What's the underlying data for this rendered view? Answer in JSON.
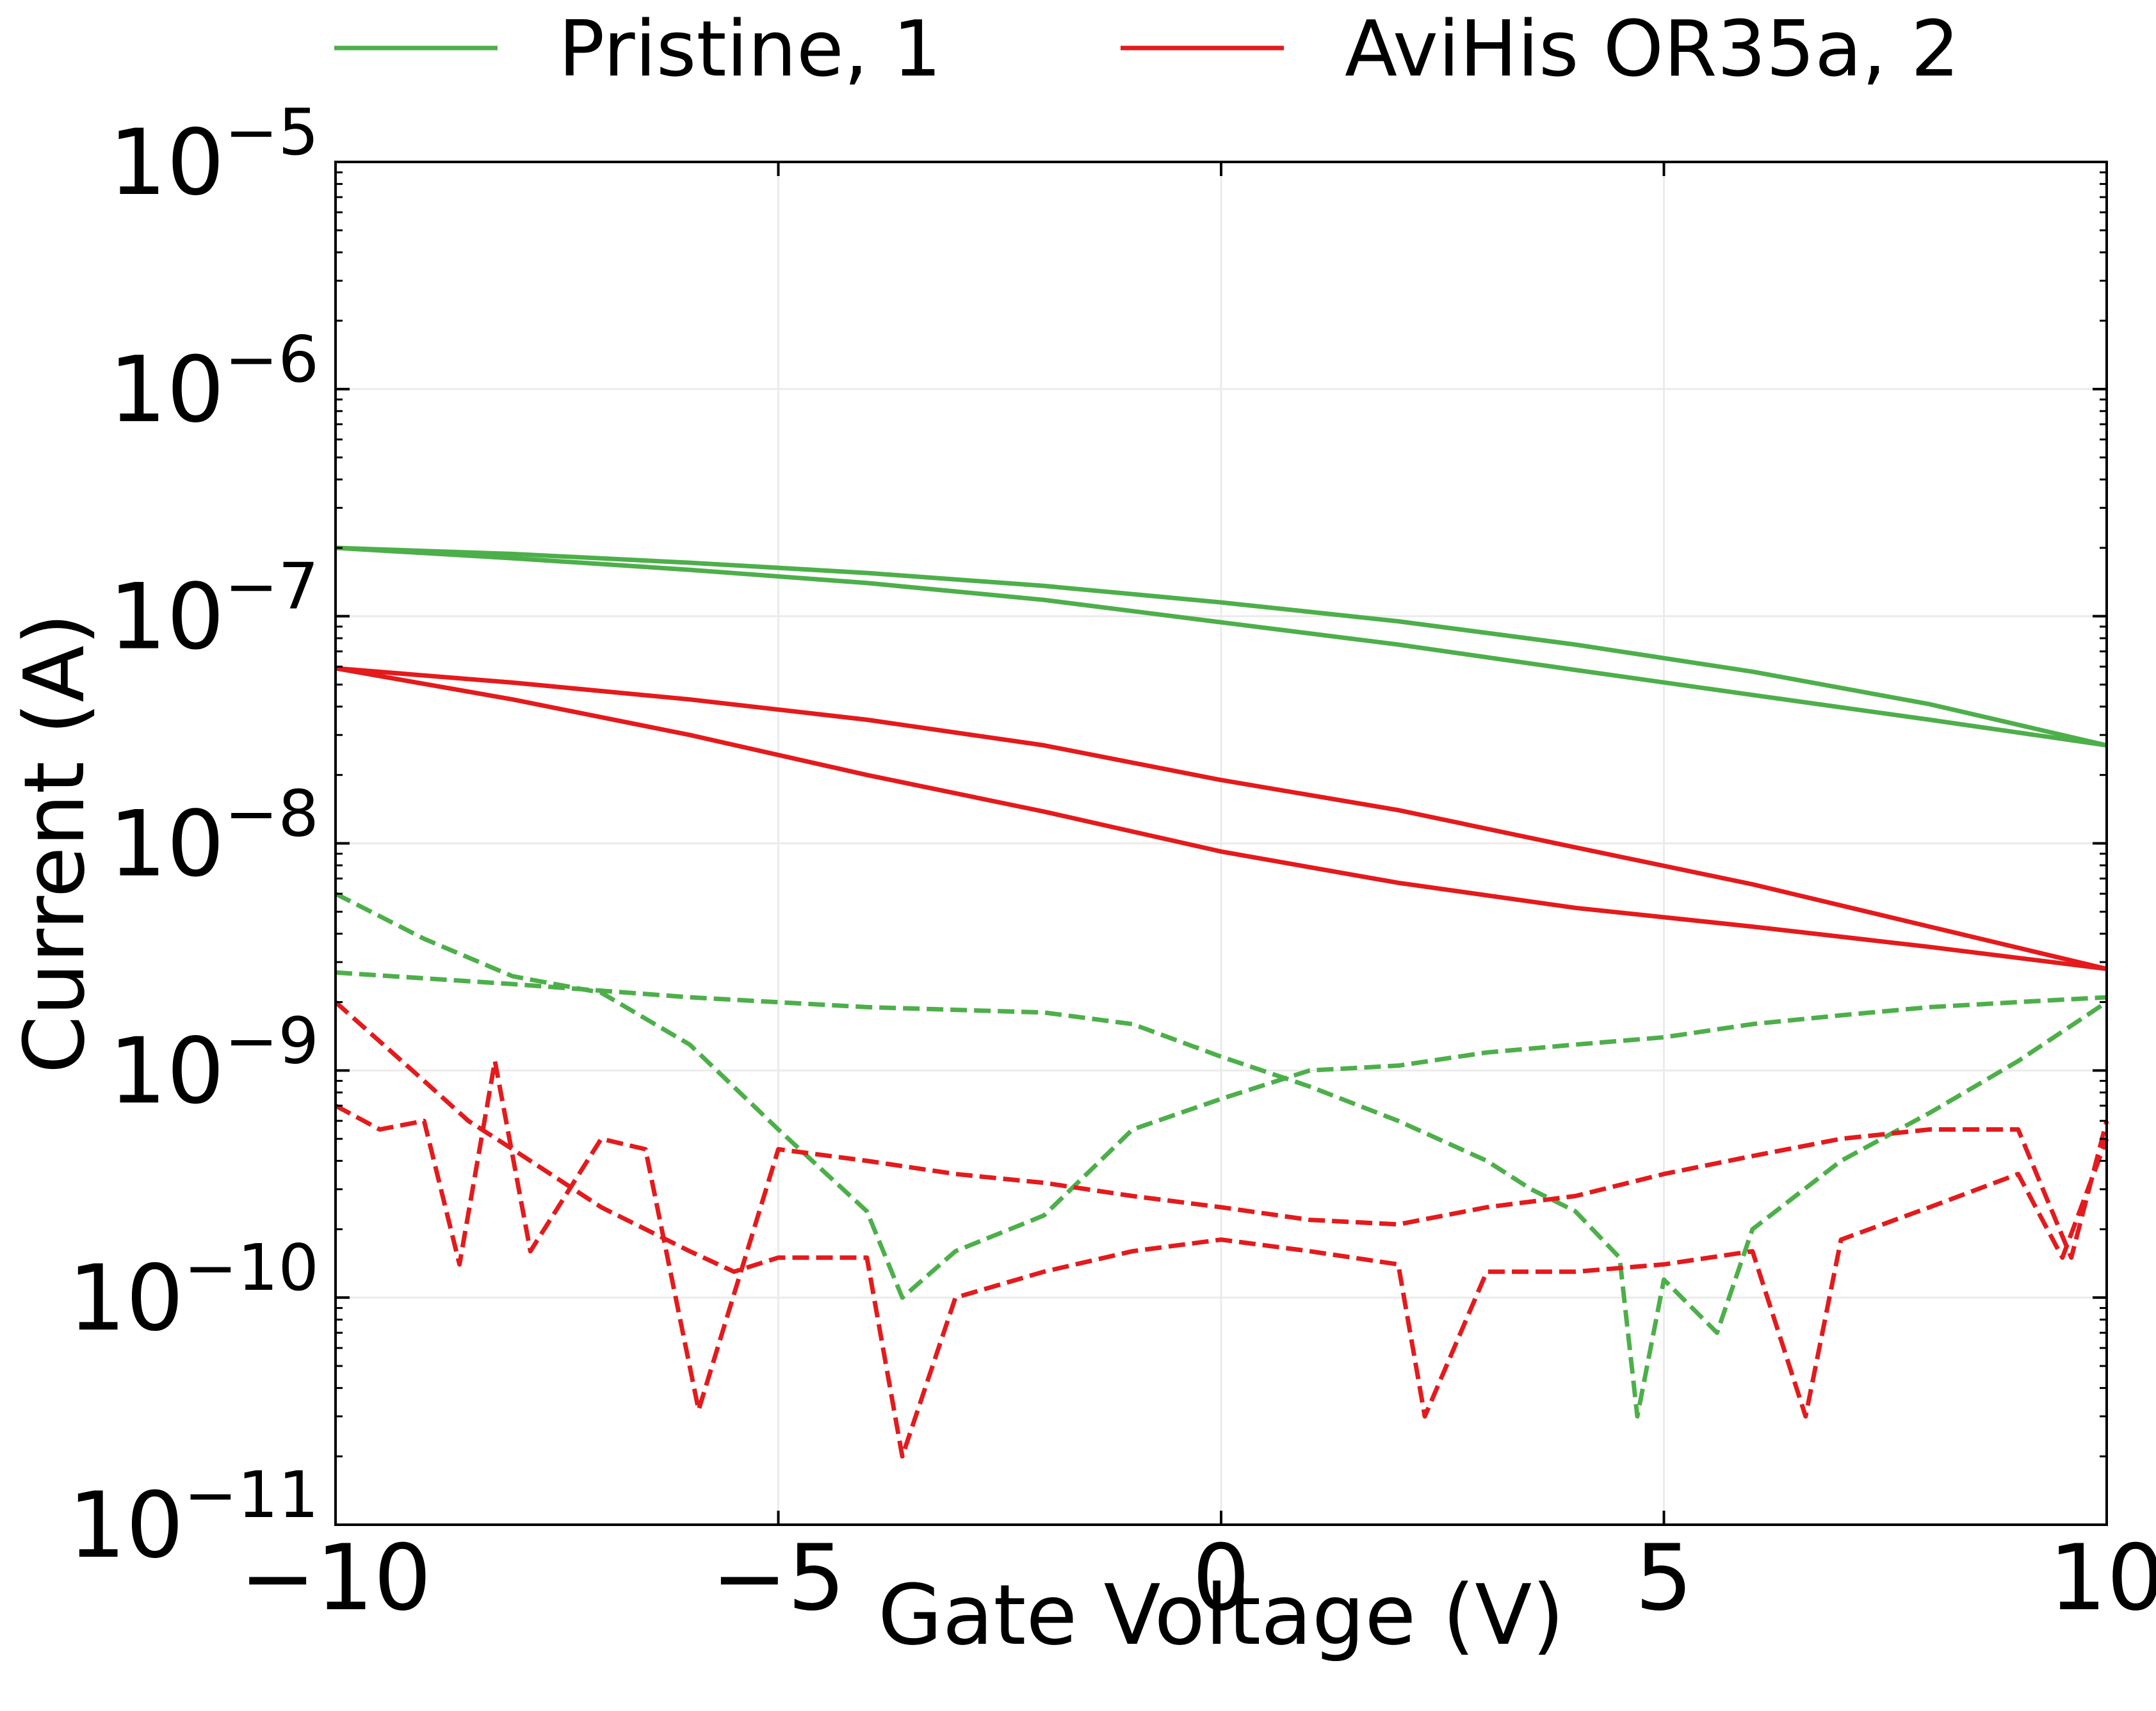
{
  "chart_data": {
    "type": "line",
    "title": "",
    "xlabel": "Gate Voltage (V)",
    "ylabel": "Current (A)",
    "xlim": [
      -10,
      10
    ],
    "ylim": [
      1e-11,
      1e-05
    ],
    "yscale": "log",
    "grid": true,
    "legend_position": "top",
    "x_ticks": [
      "−10",
      "−5",
      "0",
      "5",
      "10"
    ],
    "y_ticks": [
      {
        "base": "10",
        "exp": "−11"
      },
      {
        "base": "10",
        "exp": "−10"
      },
      {
        "base": "10",
        "exp": "−9"
      },
      {
        "base": "10",
        "exp": "−8"
      },
      {
        "base": "10",
        "exp": "−7"
      },
      {
        "base": "10",
        "exp": "−6"
      },
      {
        "base": "10",
        "exp": "−5"
      }
    ],
    "legend": [
      {
        "label": "Pristine, 1",
        "color": "#4daf4a"
      },
      {
        "label": "AviHis OR35a, 2",
        "color": "#e41a1c"
      }
    ],
    "series": [
      {
        "group": "Pristine, 1",
        "color": "#4daf4a",
        "style": "solid",
        "x": [
          -10,
          -8,
          -6,
          -4,
          -2,
          0,
          2,
          4,
          6,
          8,
          10
        ],
        "y": [
          2e-07,
          1.88e-07,
          1.72e-07,
          1.55e-07,
          1.36e-07,
          1.15e-07,
          9.5e-08,
          7.5e-08,
          5.7e-08,
          4.1e-08,
          2.7e-08
        ]
      },
      {
        "group": "Pristine, 1",
        "color": "#4daf4a",
        "style": "solid",
        "x": [
          -10,
          -8,
          -6,
          -4,
          -2,
          0,
          2,
          4,
          6,
          8,
          10
        ],
        "y": [
          2e-07,
          1.8e-07,
          1.6e-07,
          1.4e-07,
          1.18e-07,
          9.4e-08,
          7.5e-08,
          5.8e-08,
          4.5e-08,
          3.5e-08,
          2.7e-08
        ]
      },
      {
        "group": "AviHis OR35a, 2",
        "color": "#e41a1c",
        "style": "solid",
        "x": [
          -10,
          -8,
          -6,
          -4,
          -2,
          0,
          2,
          4,
          6,
          8,
          10
        ],
        "y": [
          5.9e-08,
          5.1e-08,
          4.3e-08,
          3.5e-08,
          2.7e-08,
          1.9e-08,
          1.4e-08,
          9.6e-09,
          6.6e-09,
          4.3e-09,
          2.8e-09
        ]
      },
      {
        "group": "AviHis OR35a, 2",
        "color": "#e41a1c",
        "style": "solid",
        "x": [
          -10,
          -8,
          -6,
          -4,
          -2,
          0,
          2,
          4,
          6,
          8,
          10
        ],
        "y": [
          5.9e-08,
          4.3e-08,
          3e-08,
          2e-08,
          1.38e-08,
          9.2e-09,
          6.7e-09,
          5.2e-09,
          4.3e-09,
          3.5e-09,
          2.8e-09
        ]
      },
      {
        "group": "Pristine, 1",
        "color": "#4daf4a",
        "style": "dashed",
        "x": [
          -10,
          -9,
          -8,
          -7,
          -6,
          -5,
          -4,
          -3.6,
          -3,
          -2,
          -1,
          0,
          1,
          2,
          3,
          4,
          5,
          6,
          7,
          8,
          9,
          10
        ],
        "y": [
          6e-09,
          3.8e-09,
          2.6e-09,
          2.2e-09,
          1.3e-09,
          5.5e-10,
          2.4e-10,
          1e-10,
          1.6e-10,
          2.3e-10,
          5.5e-10,
          7.5e-10,
          1e-09,
          1.05e-09,
          1.2e-09,
          1.3e-09,
          1.4e-09,
          1.6e-09,
          1.75e-09,
          1.9e-09,
          2e-09,
          2.1e-09
        ]
      },
      {
        "group": "Pristine, 1",
        "color": "#4daf4a",
        "style": "dashed",
        "x": [
          -10,
          -8,
          -6,
          -4,
          -2,
          -1,
          0,
          1,
          2,
          3,
          3.5,
          4,
          4.5,
          4.7,
          5,
          5.6,
          6,
          7,
          8,
          9,
          10
        ],
        "y": [
          2.7e-09,
          2.4e-09,
          2.1e-09,
          1.9e-09,
          1.8e-09,
          1.6e-09,
          1.15e-09,
          8.5e-10,
          6e-10,
          4e-10,
          3e-10,
          2.4e-10,
          1.5e-10,
          3e-11,
          1.2e-10,
          7e-11,
          2e-10,
          4e-10,
          6.5e-10,
          1.1e-09,
          2e-09
        ]
      },
      {
        "group": "AviHis OR35a, 2",
        "color": "#e41a1c",
        "style": "dashed",
        "x": [
          -10,
          -9,
          -8.5,
          -8,
          -7,
          -6,
          -5.5,
          -5,
          -4,
          -3.6,
          -3,
          -2,
          -1,
          0,
          1,
          2,
          2.3,
          3,
          4,
          5,
          6,
          6.6,
          7,
          8,
          9,
          9.5,
          10
        ],
        "y": [
          2e-09,
          9e-10,
          6e-10,
          4.5e-10,
          2.5e-10,
          1.6e-10,
          1.3e-10,
          1.5e-10,
          1.5e-10,
          2e-11,
          1e-10,
          1.3e-10,
          1.6e-10,
          1.8e-10,
          1.6e-10,
          1.4e-10,
          3e-11,
          1.3e-10,
          1.3e-10,
          1.4e-10,
          1.6e-10,
          3e-11,
          1.8e-10,
          2.5e-10,
          3.5e-10,
          1.5e-10,
          5e-10
        ]
      },
      {
        "group": "AviHis OR35a, 2",
        "color": "#e41a1c",
        "style": "dashed",
        "x": [
          -10,
          -9.5,
          -9,
          -8.6,
          -8.2,
          -7.8,
          -7,
          -6.5,
          -5.9,
          -5,
          -4,
          -3,
          -2,
          -1,
          0,
          1,
          2,
          3,
          4,
          5,
          6,
          7,
          8,
          9,
          9.6,
          10
        ],
        "y": [
          7e-10,
          5.5e-10,
          6e-10,
          1.4e-10,
          1.1e-09,
          1.6e-10,
          5e-10,
          4.5e-10,
          3.2e-11,
          4.5e-10,
          4e-10,
          3.5e-10,
          3.2e-10,
          2.8e-10,
          2.5e-10,
          2.2e-10,
          2.1e-10,
          2.5e-10,
          2.8e-10,
          3.5e-10,
          4.2e-10,
          5e-10,
          5.5e-10,
          5.5e-10,
          1.5e-10,
          6e-10
        ]
      }
    ]
  }
}
